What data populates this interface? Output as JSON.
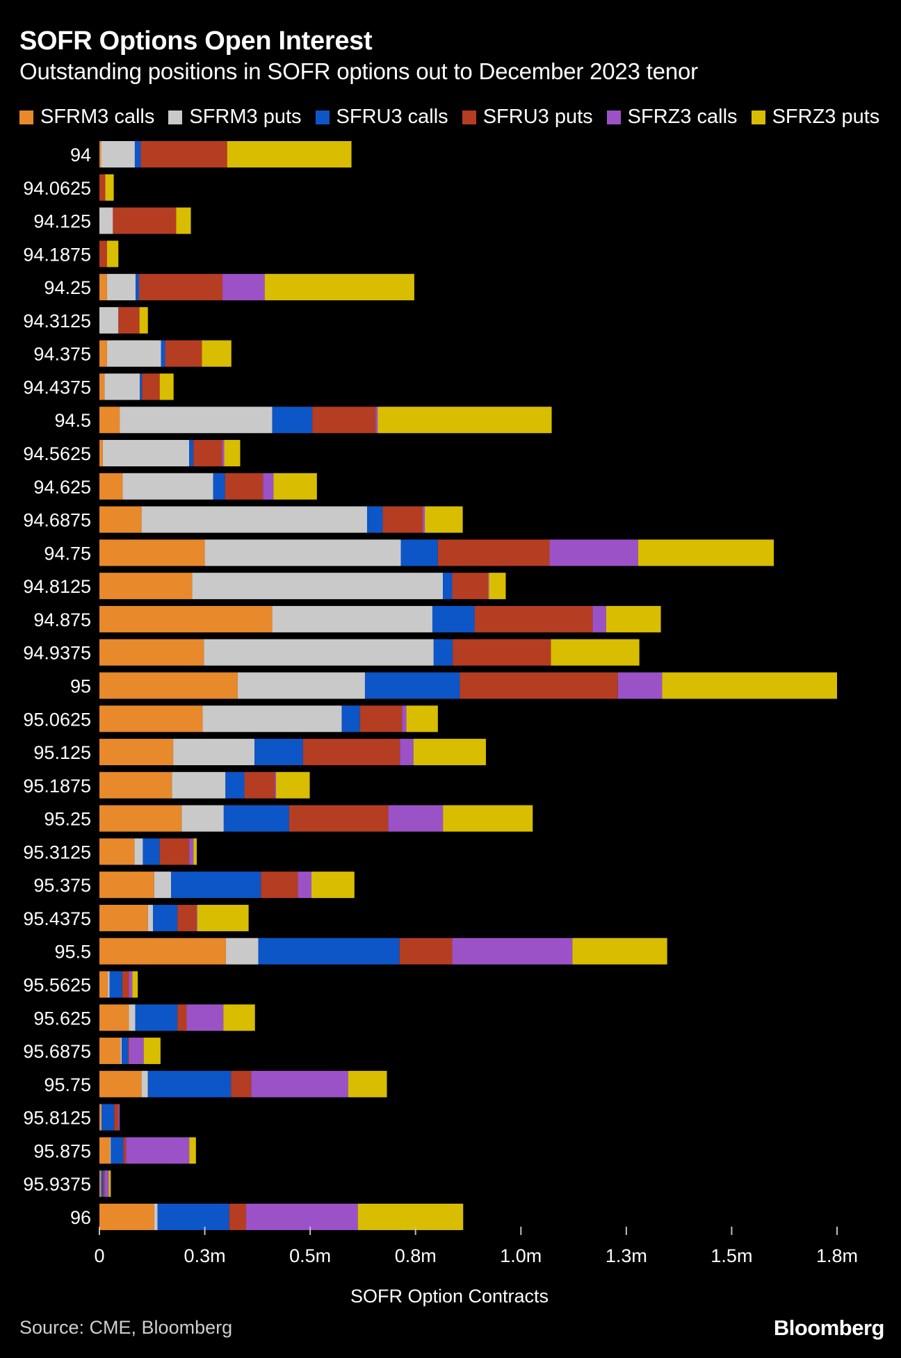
{
  "title": "SOFR Options Open Interest",
  "subtitle": "Outstanding positions in SOFR options out to December 2023 tenor",
  "source": "Source: CME, Bloomberg",
  "brand": "Bloomberg",
  "chart_data": {
    "type": "bar",
    "orientation": "horizontal",
    "stacked": true,
    "title": "SOFR Options Open Interest",
    "subtitle": "Outstanding positions in SOFR options out to December 2023 tenor",
    "xlabel": "SOFR Option Contracts",
    "ylabel": "",
    "xlim": [
      0,
      1750000
    ],
    "xticks": [
      0,
      250000,
      500000,
      750000,
      1000000,
      1250000,
      1500000,
      1750000
    ],
    "xtick_labels": [
      "0",
      "0.3m",
      "0.5m",
      "0.8m",
      "1.0m",
      "1.3m",
      "1.5m",
      "1.8m"
    ],
    "legend_position": "top",
    "categories": [
      "94",
      "94.0625",
      "94.125",
      "94.1875",
      "94.25",
      "94.3125",
      "94.375",
      "94.4375",
      "94.5",
      "94.5625",
      "94.625",
      "94.6875",
      "94.75",
      "94.8125",
      "94.875",
      "94.9375",
      "95",
      "95.0625",
      "95.125",
      "95.1875",
      "95.25",
      "95.3125",
      "95.375",
      "95.4375",
      "95.5",
      "95.5625",
      "95.625",
      "95.6875",
      "95.75",
      "95.8125",
      "95.875",
      "95.9375",
      "96"
    ],
    "series": [
      {
        "name": "SFRM3 calls",
        "color": "#e8892b",
        "values": [
          4000,
          0,
          0,
          0,
          18000,
          0,
          18000,
          12000,
          48000,
          8000,
          55000,
          100000,
          250000,
          220000,
          410000,
          248000,
          328000,
          245000,
          175000,
          172000,
          195000,
          83000,
          130000,
          115000,
          300000,
          20000,
          70000,
          50000,
          100000,
          4000,
          25000,
          3000,
          130000
        ]
      },
      {
        "name": "SFRM3 puts",
        "color": "#c9c9c9",
        "values": [
          80000,
          0,
          32000,
          0,
          68000,
          45000,
          128000,
          84000,
          362000,
          205000,
          215000,
          535000,
          465000,
          595000,
          380000,
          545000,
          302000,
          330000,
          193000,
          127000,
          100000,
          20000,
          40000,
          12000,
          77000,
          4000,
          15000,
          3000,
          15000,
          1000,
          2000,
          1000,
          8000
        ]
      },
      {
        "name": "SFRU3 calls",
        "color": "#0d56c8",
        "values": [
          14000,
          0,
          0,
          0,
          8000,
          0,
          10000,
          5000,
          95000,
          10000,
          28000,
          37000,
          88000,
          22000,
          100000,
          45000,
          225000,
          43000,
          115000,
          45000,
          155000,
          40000,
          213000,
          58000,
          335000,
          30000,
          100000,
          15000,
          197000,
          30000,
          30000,
          5000,
          170000
        ]
      },
      {
        "name": "SFRU3 puts",
        "color": "#b53d22",
        "values": [
          205000,
          14000,
          150000,
          18000,
          198000,
          50000,
          87000,
          42000,
          150000,
          68000,
          90000,
          95000,
          265000,
          85000,
          280000,
          233000,
          375000,
          100000,
          230000,
          72000,
          235000,
          70000,
          88000,
          45000,
          125000,
          16000,
          22000,
          2000,
          48000,
          10000,
          6000,
          3000,
          40000
        ]
      },
      {
        "name": "SFRZ3 calls",
        "color": "#9b52c7",
        "values": [
          0,
          0,
          0,
          0,
          100000,
          0,
          0,
          0,
          5000,
          5000,
          25000,
          5000,
          210000,
          2000,
          32000,
          0,
          105000,
          10000,
          32000,
          3000,
          130000,
          10000,
          32000,
          2000,
          285000,
          8000,
          87000,
          35000,
          230000,
          3000,
          150000,
          10000,
          265000
        ]
      },
      {
        "name": "SFRZ3 puts",
        "color": "#d9bd00",
        "values": [
          295000,
          20000,
          35000,
          27000,
          355000,
          20000,
          70000,
          33000,
          413000,
          38000,
          103000,
          90000,
          322000,
          40000,
          130000,
          210000,
          415000,
          75000,
          172000,
          80000,
          213000,
          8000,
          102000,
          122000,
          225000,
          13000,
          75000,
          40000,
          92000,
          0,
          16000,
          5000,
          250000
        ]
      }
    ]
  }
}
